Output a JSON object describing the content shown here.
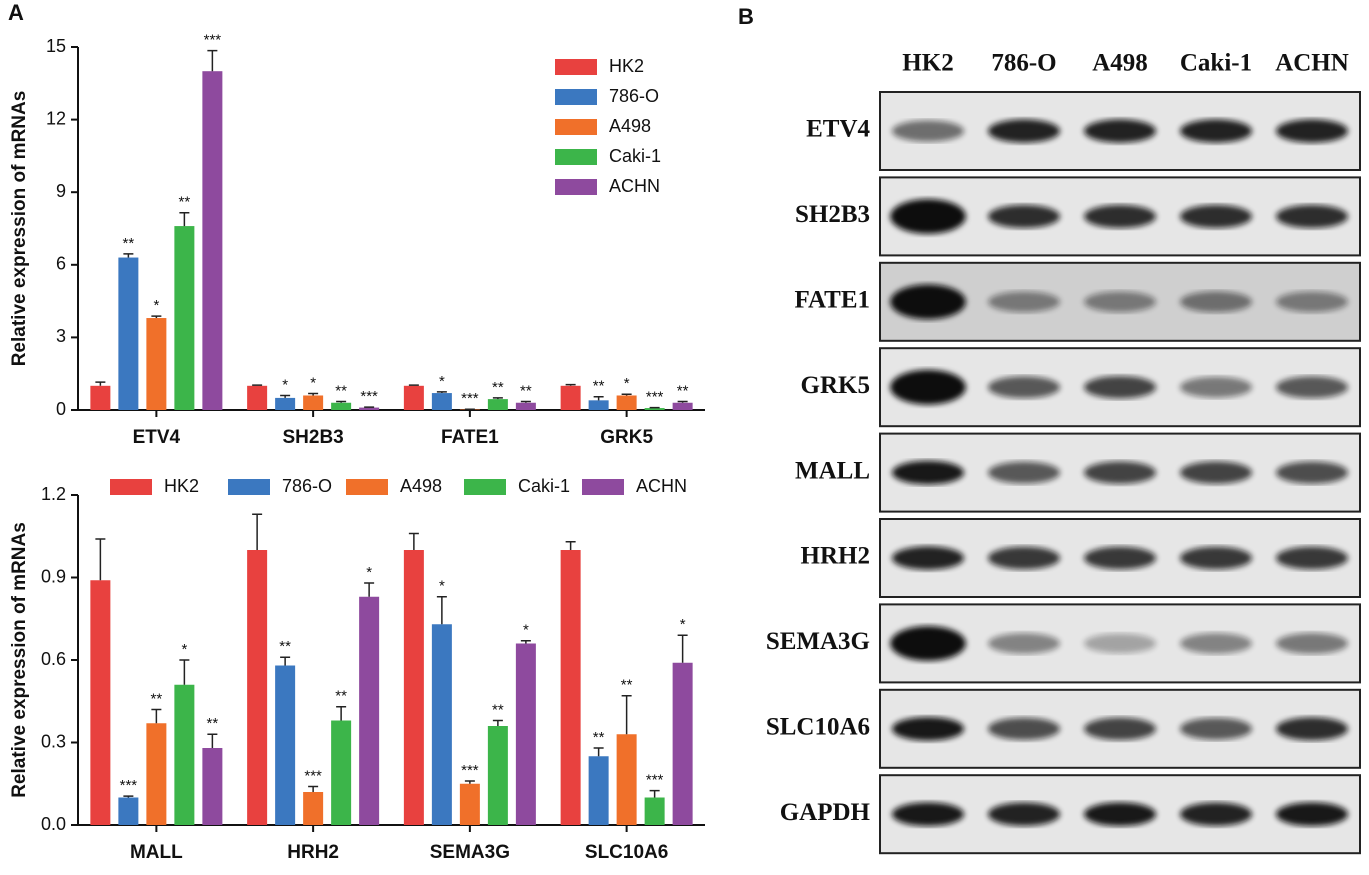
{
  "panel_labels": [
    "A",
    "B"
  ],
  "chart_data": [
    {
      "type": "bar",
      "y_label": "Relative expression of mRNAs",
      "categories": [
        "ETV4",
        "SH2B3",
        "FATE1",
        "GRK5"
      ],
      "series": [
        {
          "name": "HK2",
          "color": "#e8413f",
          "values": [
            1.0,
            1.0,
            1.0,
            1.0
          ],
          "errors": [
            0.15,
            0.03,
            0.03,
            0.05
          ]
        },
        {
          "name": "786-O",
          "color": "#3b78c0",
          "values": [
            6.3,
            0.5,
            0.7,
            0.4
          ],
          "errors": [
            0.15,
            0.1,
            0.05,
            0.15
          ],
          "significance": [
            "**",
            "*",
            "*",
            "**"
          ]
        },
        {
          "name": "A498",
          "color": "#f0702a",
          "values": [
            3.8,
            0.6,
            0.02,
            0.6
          ],
          "errors": [
            0.08,
            0.08,
            0.01,
            0.05
          ],
          "significance": [
            "*",
            "*",
            "***",
            "*"
          ]
        },
        {
          "name": "Caki-1",
          "color": "#3cb54a",
          "values": [
            7.6,
            0.3,
            0.45,
            0.08
          ],
          "errors": [
            0.55,
            0.05,
            0.05,
            0.02
          ],
          "significance": [
            "**",
            "**",
            "**",
            "***"
          ]
        },
        {
          "name": "ACHN",
          "color": "#8e4a9e",
          "values": [
            14.0,
            0.1,
            0.3,
            0.3
          ],
          "errors": [
            0.85,
            0.02,
            0.05,
            0.05
          ],
          "significance": [
            "***",
            "***",
            "**",
            "**"
          ]
        }
      ],
      "ylim": [
        0,
        15
      ],
      "yticks": [
        0,
        3,
        6,
        9,
        12,
        15
      ],
      "legend": "upper right"
    },
    {
      "type": "bar",
      "y_label": "Relative expression of mRNAs",
      "categories": [
        "MALL",
        "HRH2",
        "SEMA3G",
        "SLC10A6"
      ],
      "series": [
        {
          "name": "HK2",
          "color": "#e8413f",
          "values": [
            0.89,
            1.0,
            1.0,
            1.0
          ],
          "errors": [
            0.15,
            0.13,
            0.06,
            0.03
          ]
        },
        {
          "name": "786-O",
          "color": "#3b78c0",
          "values": [
            0.1,
            0.58,
            0.73,
            0.25
          ],
          "errors": [
            0.005,
            0.03,
            0.1,
            0.03
          ],
          "significance": [
            "***",
            "**",
            "*",
            "**"
          ]
        },
        {
          "name": "A498",
          "color": "#f0702a",
          "values": [
            0.37,
            0.12,
            0.15,
            0.33
          ],
          "errors": [
            0.05,
            0.02,
            0.01,
            0.14
          ],
          "significance": [
            "**",
            "***",
            "***",
            "**"
          ]
        },
        {
          "name": "Caki-1",
          "color": "#3cb54a",
          "values": [
            0.51,
            0.38,
            0.36,
            0.1
          ],
          "errors": [
            0.09,
            0.05,
            0.02,
            0.025
          ],
          "significance": [
            "*",
            "**",
            "**",
            "***"
          ]
        },
        {
          "name": "ACHN",
          "color": "#8e4a9e",
          "values": [
            0.28,
            0.83,
            0.66,
            0.59
          ],
          "errors": [
            0.05,
            0.05,
            0.01,
            0.1
          ],
          "significance": [
            "**",
            "*",
            "*",
            "*"
          ]
        }
      ],
      "ylim": [
        0,
        1.2
      ],
      "yticks": [
        {
          "value": 0,
          "label": "0.0"
        },
        0.3,
        0.6,
        0.9,
        1.2
      ],
      "legend": "top"
    }
  ],
  "blot": {
    "columns": [
      "HK2",
      "786-O",
      "A498",
      "Caki-1",
      "ACHN"
    ],
    "rows": [
      "ETV4",
      "SH2B3",
      "FATE1",
      "GRK5",
      "MALL",
      "HRH2",
      "SEMA3G",
      "SLC10A6",
      "GAPDH"
    ]
  }
}
